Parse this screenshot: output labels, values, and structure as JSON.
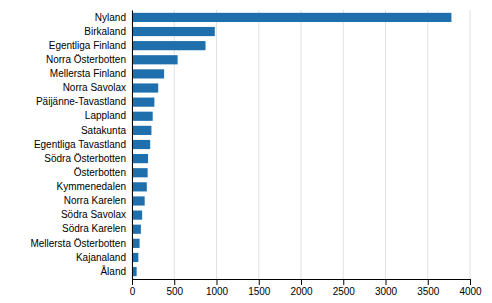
{
  "chart_data": {
    "type": "bar",
    "orientation": "horizontal",
    "categories": [
      "Åland",
      "Kajanaland",
      "Mellersta Österbotten",
      "Södra Karelen",
      "Södra Savolax",
      "Norra Karelen",
      "Kymmenedalen",
      "Österbotten",
      "Södra Österbotten",
      "Egentliga Tavastland",
      "Satakunta",
      "Lappland",
      "Päijänne-Tavastland",
      "Norra Savolax",
      "Mellersta Finland",
      "Norra Österbotten",
      "Egentliga Finland",
      "Birkaland",
      "Nyland"
    ],
    "values": [
      55,
      75,
      90,
      105,
      120,
      150,
      175,
      185,
      190,
      215,
      230,
      245,
      265,
      310,
      380,
      540,
      870,
      980,
      3780
    ],
    "color": "#1F6FAD",
    "xlim": [
      0,
      4000
    ],
    "xticks": [
      0,
      500,
      1000,
      1500,
      2000,
      2500,
      3000,
      3500,
      4000
    ],
    "grid": true
  }
}
